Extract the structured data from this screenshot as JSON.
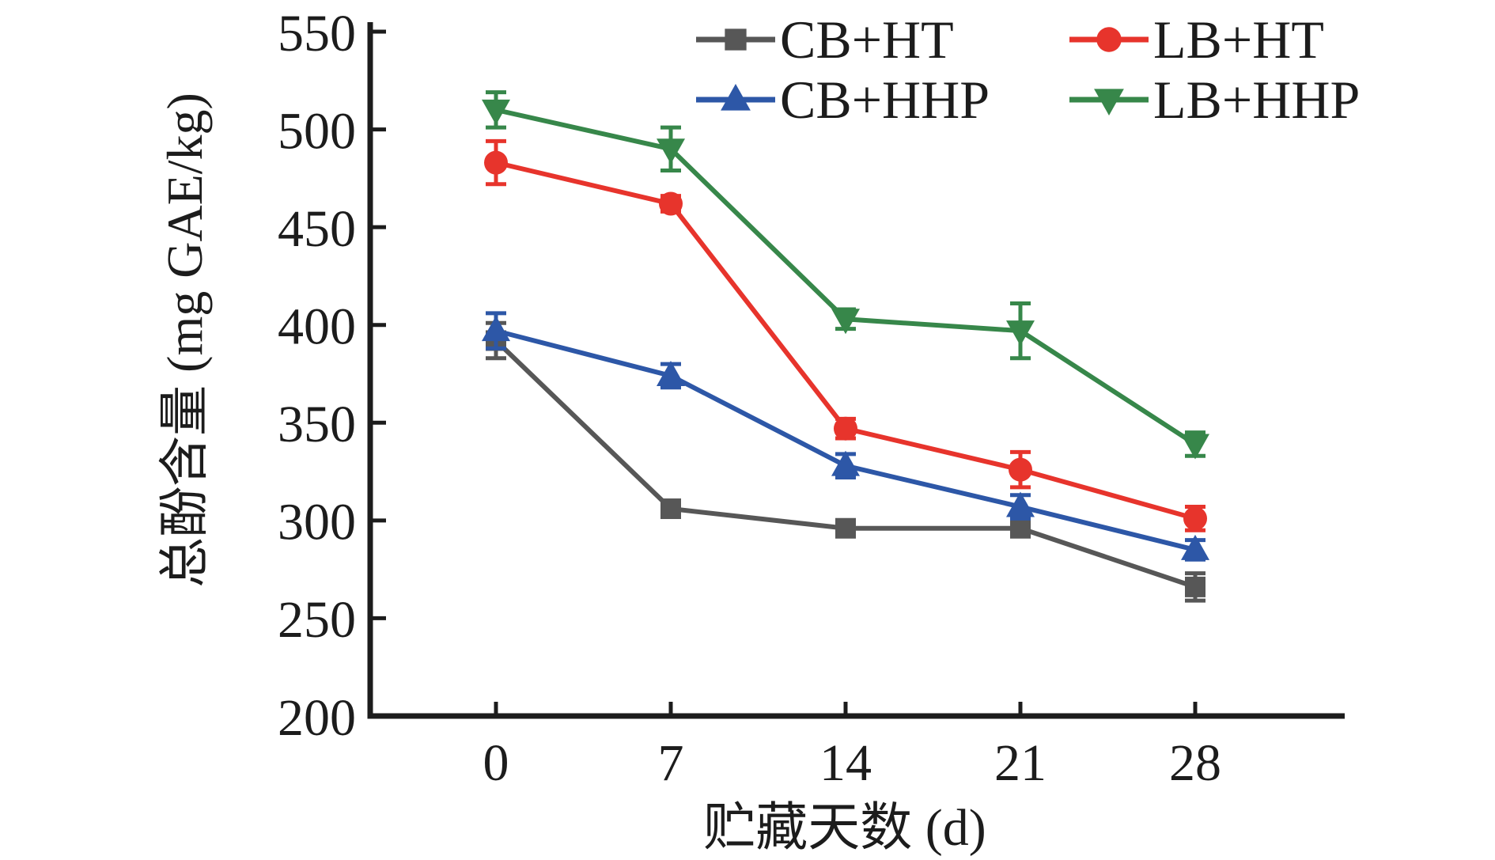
{
  "chart_data": {
    "type": "line",
    "title": "",
    "xlabel": "贮藏天数 (d)",
    "ylabel": "总酚含量 (mg GAE/kg)",
    "x": [
      0,
      7,
      14,
      21,
      28
    ],
    "xticks": [
      "0",
      "7",
      "14",
      "21",
      "28"
    ],
    "yticks": [
      200,
      250,
      300,
      350,
      400,
      450,
      500,
      550
    ],
    "ylim": [
      200,
      550
    ],
    "grid": false,
    "legend_position": "top-right, 2 columns x 2 rows, inside plot",
    "axis_color": "#1c1c1c",
    "series": [
      {
        "name": "CB+HT",
        "marker": "square",
        "color": "#575757",
        "values": [
          392,
          306,
          296,
          296,
          266
        ],
        "errors": [
          9,
          3,
          3,
          3,
          7
        ]
      },
      {
        "name": "LB+HT",
        "marker": "circle",
        "color": "#e7342c",
        "values": [
          483,
          462,
          347,
          326,
          301
        ],
        "errors": [
          11,
          4,
          5,
          9,
          6
        ]
      },
      {
        "name": "CB+HHP",
        "marker": "triangle-up",
        "color": "#2d57a7",
        "values": [
          397,
          374,
          328,
          307,
          285
        ],
        "errors": [
          9,
          6,
          6,
          6,
          5
        ]
      },
      {
        "name": "LB+HHP",
        "marker": "triangle-down",
        "color": "#37874a",
        "values": [
          510,
          490,
          403,
          397,
          339
        ],
        "errors": [
          9,
          11,
          5,
          14,
          6
        ]
      }
    ]
  }
}
